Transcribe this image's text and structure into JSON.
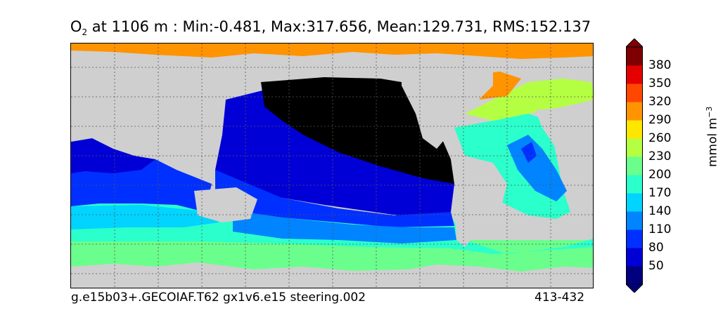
{
  "title": {
    "prefix": "O",
    "subscript": "2",
    "text": " at 1106 m : Min:-0.481, Max:317.656, Mean:129.731, RMS:152.137"
  },
  "footer": {
    "left": "g.e15b03+.GECOIAF.T62 gx1v6.e15 steering.002",
    "right": "413-432"
  },
  "colorbar": {
    "unit_label": "mmol m",
    "unit_exponent": "−3",
    "ticks": [
      "50",
      "80",
      "110",
      "140",
      "170",
      "200",
      "230",
      "260",
      "290",
      "320",
      "350",
      "380"
    ],
    "levels_bottom_to_top": [
      {
        "color": "#00007f"
      },
      {
        "color": "#0000d6"
      },
      {
        "color": "#0030ff"
      },
      {
        "color": "#0084ff"
      },
      {
        "color": "#00d4ff"
      },
      {
        "color": "#2bffcb"
      },
      {
        "color": "#6aff8c"
      },
      {
        "color": "#b5ff43"
      },
      {
        "color": "#ffe600"
      },
      {
        "color": "#ff9300"
      },
      {
        "color": "#ff4700"
      },
      {
        "color": "#e50000"
      },
      {
        "color": "#7f0000"
      }
    ],
    "under_color": "#00007f",
    "over_color": "#7f0000"
  },
  "map": {
    "land_color": "#cfcfcf",
    "missing_color": "#ffffff",
    "low_oxygen_color": "#000000",
    "gridlines": "dotted"
  }
}
